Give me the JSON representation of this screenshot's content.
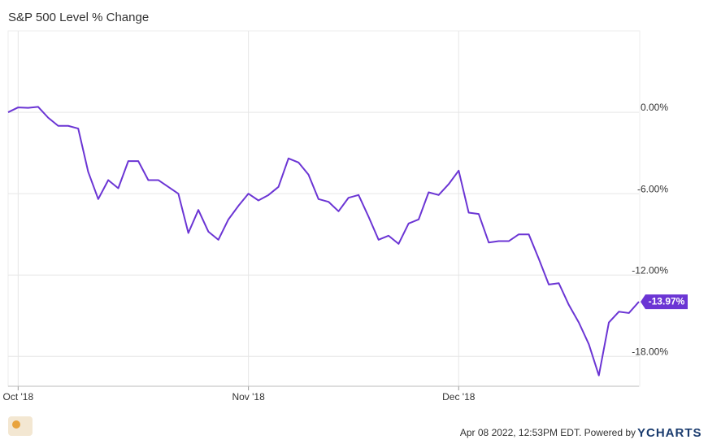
{
  "chart_data": {
    "type": "line",
    "title": "S&P 500 Level % Change",
    "categories": [
      null,
      "Oct '18",
      null,
      null,
      null,
      null,
      null,
      null,
      null,
      null,
      null,
      null,
      null,
      null,
      null,
      null,
      null,
      null,
      null,
      null,
      null,
      null,
      null,
      null,
      "Nov '18",
      null,
      null,
      null,
      null,
      null,
      null,
      null,
      null,
      null,
      null,
      null,
      null,
      null,
      null,
      null,
      null,
      null,
      null,
      null,
      null,
      "Dec '18",
      null,
      null,
      null,
      null,
      null,
      null,
      null,
      null,
      null,
      null,
      null,
      null,
      null,
      null,
      null,
      null,
      null,
      null
    ],
    "series": [
      {
        "name": "S&P 500 Level % Change",
        "color": "#6b35d4",
        "values": [
          0.0,
          0.36,
          0.33,
          0.4,
          -0.4,
          -1.0,
          -1.0,
          -1.2,
          -4.4,
          -6.4,
          -5.0,
          -5.6,
          -3.6,
          -3.6,
          -5.0,
          -5.0,
          -5.5,
          -6.0,
          -8.9,
          -7.2,
          -8.8,
          -9.4,
          -7.9,
          -6.9,
          -6.0,
          -6.5,
          -6.1,
          -5.5,
          -3.4,
          -3.7,
          -4.6,
          -6.4,
          -6.6,
          -7.3,
          -6.3,
          -6.1,
          -7.7,
          -9.4,
          -9.1,
          -9.7,
          -8.2,
          -7.9,
          -5.9,
          -6.1,
          -5.3,
          -4.3,
          -7.4,
          -7.5,
          -9.6,
          -9.5,
          -9.5,
          -9.0,
          -9.0,
          -10.8,
          -12.7,
          -12.6,
          -14.2,
          -15.5,
          -17.1,
          -19.4,
          -15.5,
          -14.7,
          -14.8,
          -13.97
        ],
        "value_labels": [
          null,
          null,
          null,
          null,
          null,
          null,
          null,
          null,
          null,
          null,
          null,
          null,
          null,
          null,
          null,
          null,
          null,
          null,
          null,
          null,
          null,
          null,
          null,
          null,
          null,
          null,
          null,
          null,
          null,
          null,
          null,
          null,
          null,
          null,
          null,
          null,
          null,
          null,
          null,
          null,
          null,
          null,
          null,
          null,
          null,
          null,
          null,
          null,
          null,
          null,
          null,
          null,
          null,
          null,
          null,
          null,
          null,
          null,
          null,
          null,
          null,
          null,
          null,
          "-13.97%"
        ]
      }
    ],
    "ylim": [
      -20.2,
      6
    ],
    "yticks": [
      {
        "value": 0,
        "label": "0.00%"
      },
      {
        "value": -6,
        "label": "-6.00%"
      },
      {
        "value": -12,
        "label": "-12.00%"
      },
      {
        "value": -18,
        "label": "-18.00%"
      }
    ],
    "grid": true
  },
  "footer": {
    "timestamp": "Apr 08 2022, 12:53PM EDT. Powered by",
    "brand": "YCHARTS"
  }
}
